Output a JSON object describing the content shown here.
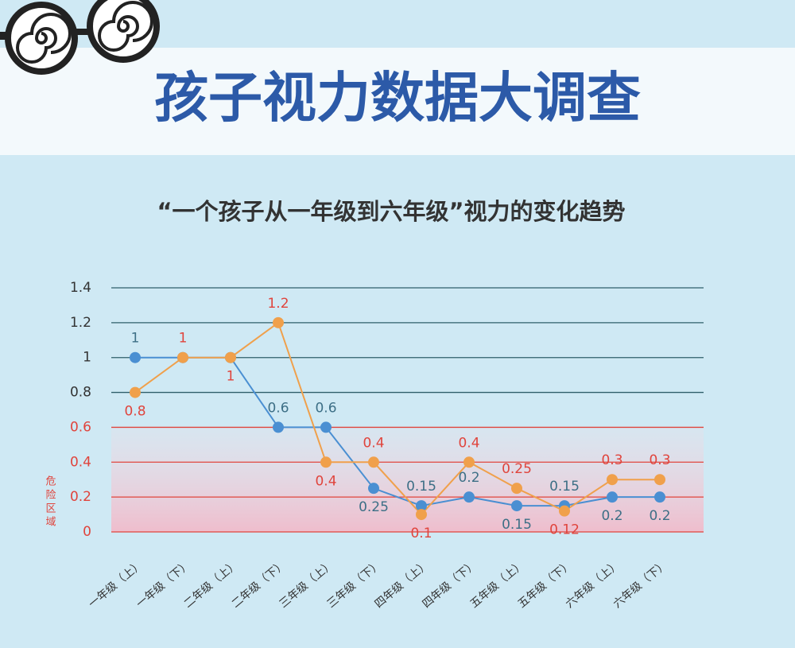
{
  "chart_data": {
    "type": "line",
    "title": "孩子视力数据大调查",
    "subtitle": "“一个孩子从一年级到六年级”视力的变化趋势",
    "categories": [
      "一年级（上）",
      "一年级（下）",
      "二年级（上）",
      "二年级（下）",
      "三年级（上）",
      "三年级（下）",
      "四年级（上）",
      "四年级（下）",
      "五年级（上）",
      "五年级（下）",
      "六年级（上）",
      "六年级（下）"
    ],
    "series": [
      {
        "color": "#4a8fd2",
        "label_color": "#3d6f86",
        "values": [
          1,
          1,
          1,
          0.6,
          0.6,
          0.25,
          0.15,
          0.2,
          0.15,
          0.15,
          0.2,
          0.2
        ],
        "value_labels": [
          "1",
          null,
          null,
          "0.6",
          "0.6",
          "0.25",
          "0.15",
          "0.2",
          "0.15",
          "0.15",
          "0.2",
          "0.2"
        ]
      },
      {
        "color": "#f0a04b",
        "label_color": "#e0443c",
        "values": [
          0.8,
          1,
          1,
          1.2,
          0.4,
          0.4,
          0.1,
          0.4,
          0.25,
          0.12,
          0.3,
          0.3
        ],
        "value_labels": [
          "0.8",
          "1",
          "1",
          "1.2",
          "0.4",
          "0.4",
          "0.1",
          "0.4",
          "0.25",
          "0.12",
          "0.3",
          "0.3"
        ]
      }
    ],
    "ylim": [
      0,
      1.4
    ],
    "yticks": [
      0,
      0.2,
      0.4,
      0.6,
      0.8,
      1,
      1.2,
      1.4
    ],
    "grid": true,
    "danger_zone": {
      "label": "危险区域",
      "max": 0.6,
      "color": "#e0443c"
    }
  }
}
